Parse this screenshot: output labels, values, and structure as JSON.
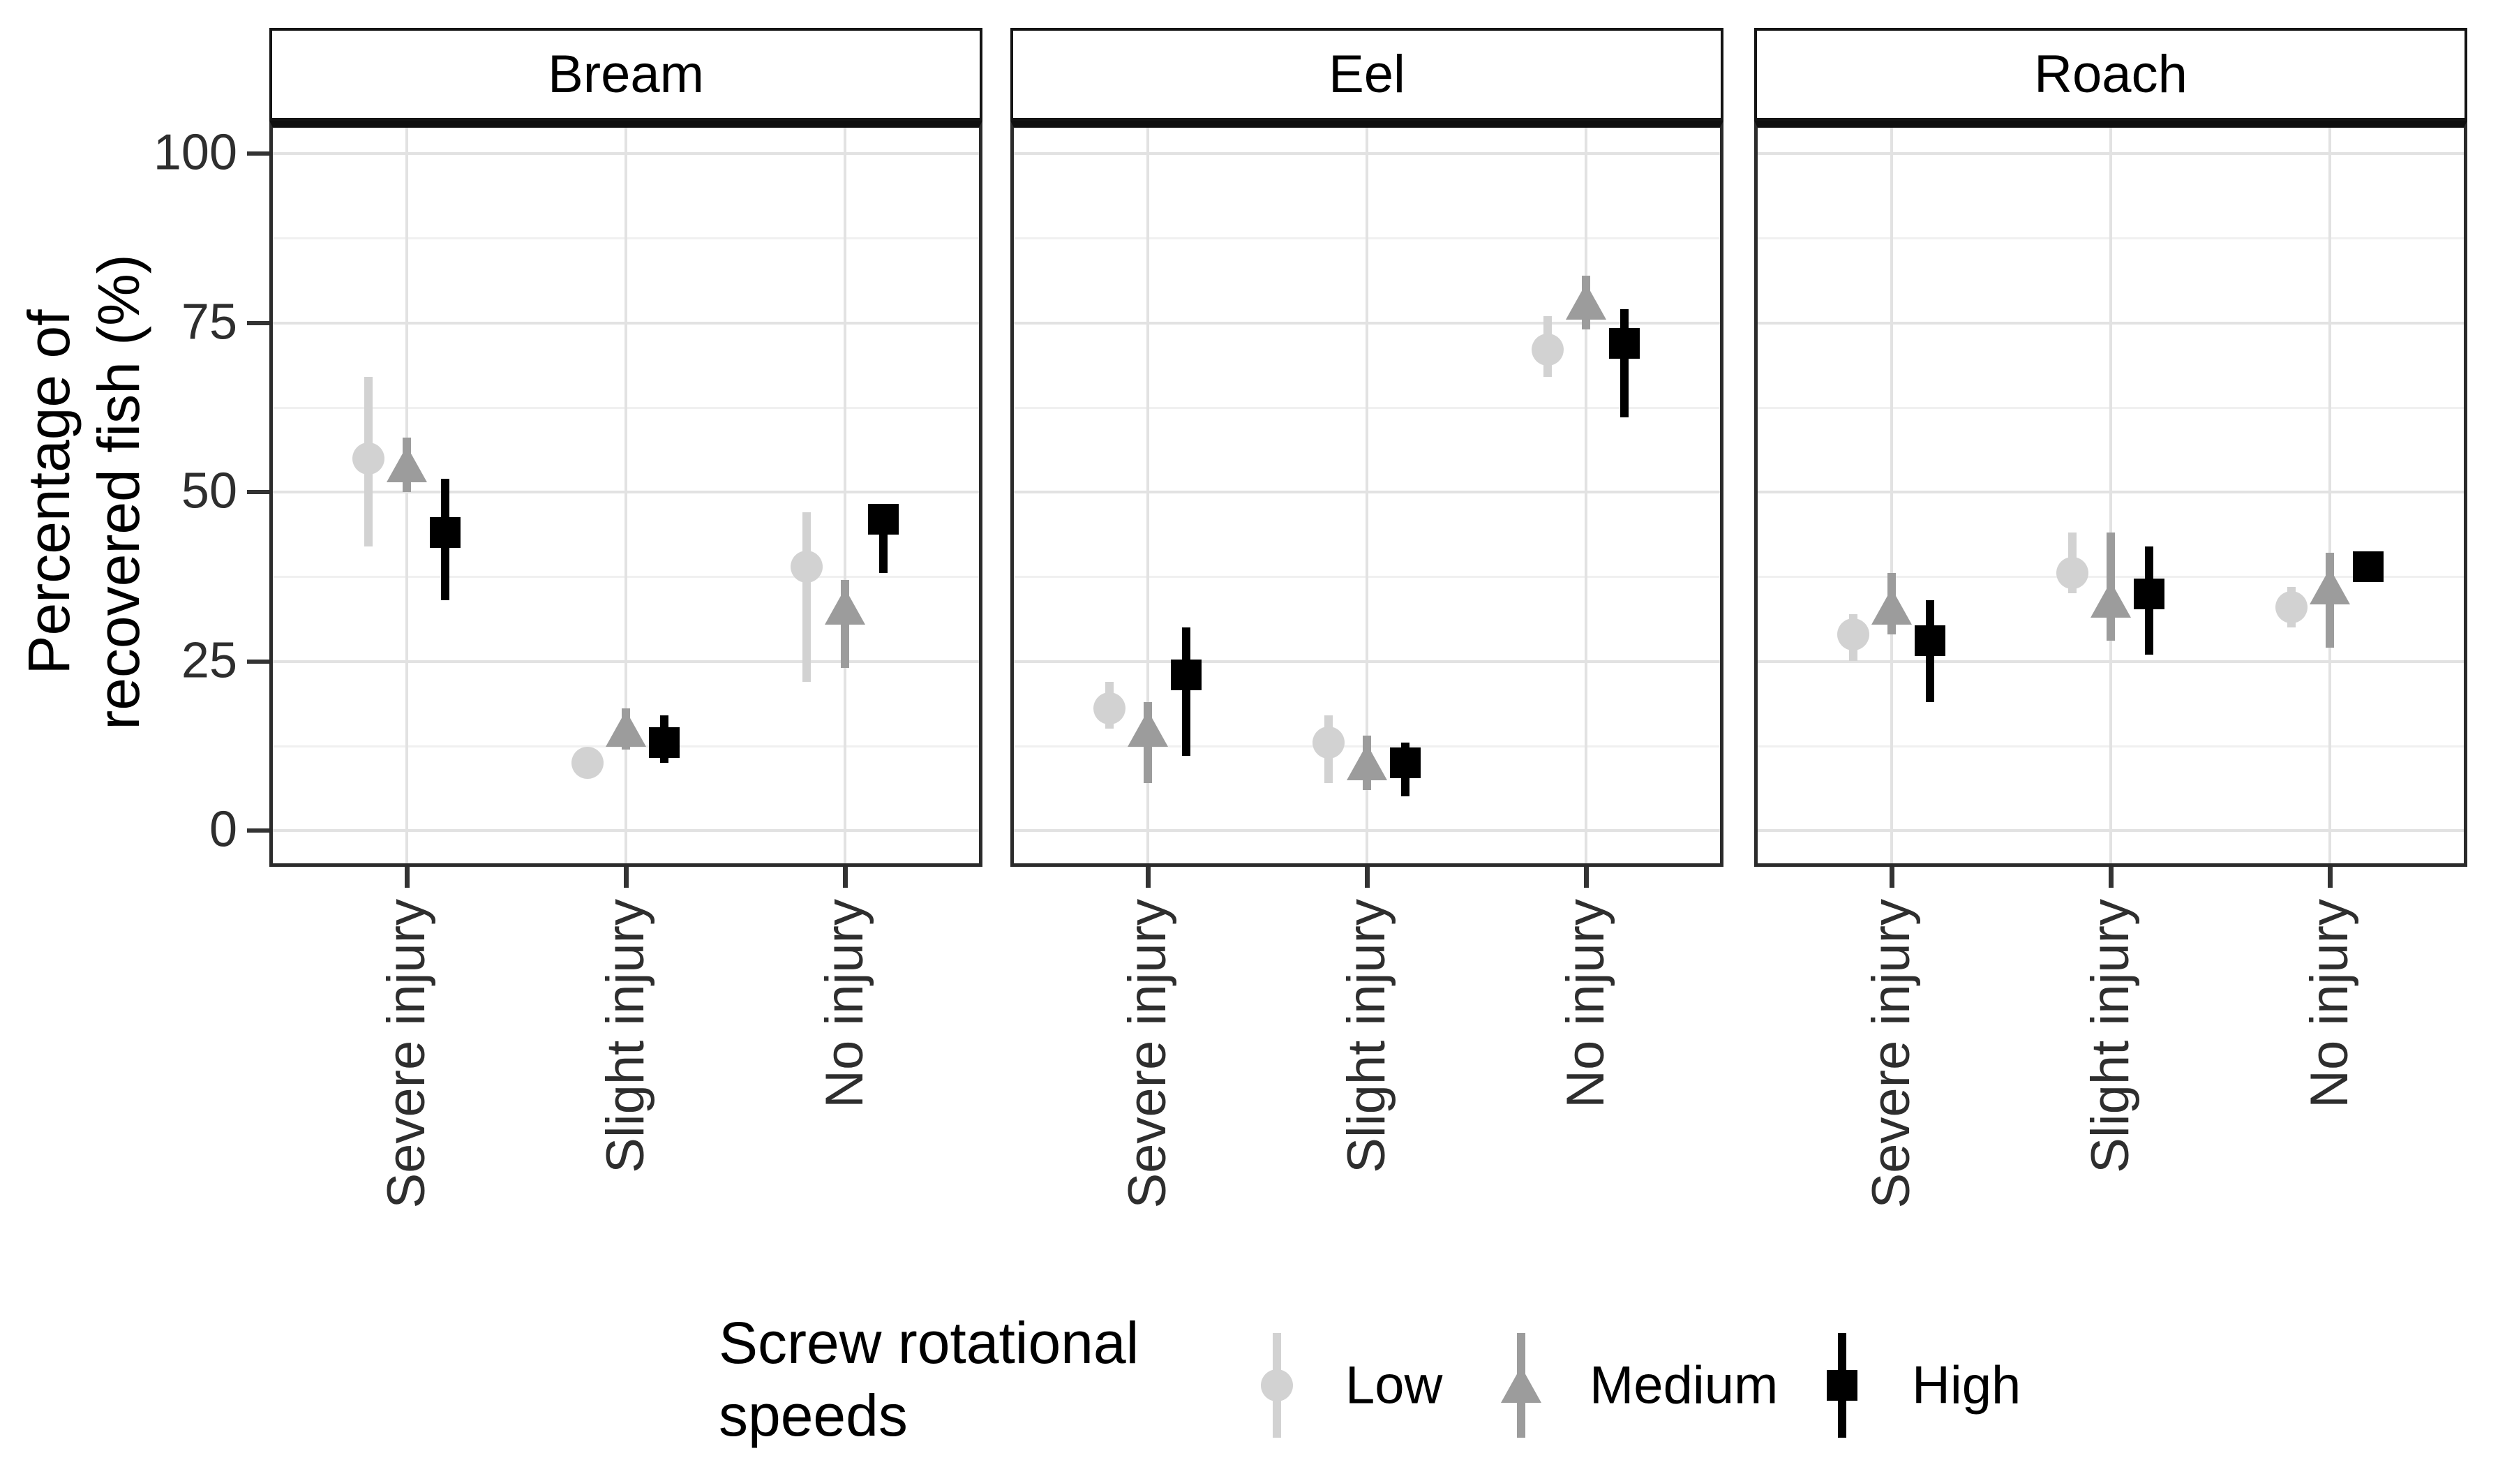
{
  "figure": {
    "y_axis": {
      "title_line1": "Percentage of",
      "title_line2": "recovered fish (%)",
      "tick_labels": [
        "100",
        "75",
        "50",
        "25",
        "0"
      ],
      "tick_values": [
        100,
        75,
        50,
        25,
        0
      ],
      "minor_values": [
        87.5,
        62.5,
        37.5,
        12.5
      ]
    },
    "x_categories": [
      "Severe injury",
      "Slight injury",
      "No injury"
    ],
    "facet_labels": [
      "Bream",
      "Eel",
      "Roach"
    ]
  },
  "legend": {
    "title_line1": "Screw rotational",
    "title_line2": "speeds",
    "items": [
      {
        "label": "Low",
        "shape": "circle",
        "color": "#d2d2d2"
      },
      {
        "label": "Medium",
        "shape": "triangle",
        "color": "#9c9c9c"
      },
      {
        "label": "High",
        "shape": "square",
        "color": "#000000"
      }
    ]
  },
  "colors": {
    "grid_major": "#e2e2e2",
    "grid_minor": "#f0f0f0",
    "panel_border": "#2b2b2b",
    "axis_text": "#2e2e2e"
  },
  "chart_data": {
    "type": "scatter",
    "title": "",
    "xlabel": "",
    "ylabel": "Percentage of recovered fish (%)",
    "ylim": [
      0,
      100
    ],
    "grid": true,
    "legend_position": "bottom",
    "categories": [
      "Severe injury",
      "Slight injury",
      "No injury"
    ],
    "facets": [
      {
        "name": "Bream",
        "series": [
          {
            "speed": "Low",
            "values": [
              {
                "category": "Severe injury",
                "value": 55,
                "lo": 42,
                "hi": 67
              },
              {
                "category": "Slight injury",
                "value": 10,
                "lo": 8,
                "hi": 12
              },
              {
                "category": "No injury",
                "value": 39,
                "lo": 22,
                "hi": 47
              }
            ]
          },
          {
            "speed": "Medium",
            "values": [
              {
                "category": "Severe injury",
                "value": 54,
                "lo": 50,
                "hi": 58
              },
              {
                "category": "Slight injury",
                "value": 15,
                "lo": 12,
                "hi": 18
              },
              {
                "category": "No injury",
                "value": 33,
                "lo": 24,
                "hi": 37
              }
            ]
          },
          {
            "speed": "High",
            "values": [
              {
                "category": "Severe injury",
                "value": 44,
                "lo": 34,
                "hi": 52
              },
              {
                "category": "Slight injury",
                "value": 13,
                "lo": 10,
                "hi": 17
              },
              {
                "category": "No injury",
                "value": 46,
                "lo": 38,
                "hi": 48
              }
            ]
          }
        ]
      },
      {
        "name": "Eel",
        "series": [
          {
            "speed": "Low",
            "values": [
              {
                "category": "Severe injury",
                "value": 18,
                "lo": 15,
                "hi": 22
              },
              {
                "category": "Slight injury",
                "value": 13,
                "lo": 7,
                "hi": 17
              },
              {
                "category": "No injury",
                "value": 71,
                "lo": 67,
                "hi": 76
              }
            ]
          },
          {
            "speed": "Medium",
            "values": [
              {
                "category": "Severe injury",
                "value": 15,
                "lo": 7,
                "hi": 19
              },
              {
                "category": "Slight injury",
                "value": 10,
                "lo": 6,
                "hi": 14
              },
              {
                "category": "No injury",
                "value": 78,
                "lo": 74,
                "hi": 82
              }
            ]
          },
          {
            "speed": "High",
            "values": [
              {
                "category": "Severe injury",
                "value": 23,
                "lo": 11,
                "hi": 30
              },
              {
                "category": "Slight injury",
                "value": 10,
                "lo": 5,
                "hi": 13
              },
              {
                "category": "No injury",
                "value": 72,
                "lo": 61,
                "hi": 77
              }
            ]
          }
        ]
      },
      {
        "name": "Roach",
        "series": [
          {
            "speed": "Low",
            "values": [
              {
                "category": "Severe injury",
                "value": 29,
                "lo": 25,
                "hi": 32
              },
              {
                "category": "Slight injury",
                "value": 38,
                "lo": 35,
                "hi": 44
              },
              {
                "category": "No injury",
                "value": 33,
                "lo": 30,
                "hi": 36
              }
            ]
          },
          {
            "speed": "Medium",
            "values": [
              {
                "category": "Severe injury",
                "value": 33,
                "lo": 29,
                "hi": 38
              },
              {
                "category": "Slight injury",
                "value": 34,
                "lo": 28,
                "hi": 44
              },
              {
                "category": "No injury",
                "value": 36,
                "lo": 27,
                "hi": 41
              }
            ]
          },
          {
            "speed": "High",
            "values": [
              {
                "category": "Severe injury",
                "value": 28,
                "lo": 19,
                "hi": 34
              },
              {
                "category": "Slight injury",
                "value": 35,
                "lo": 26,
                "hi": 42
              },
              {
                "category": "No injury",
                "value": 39,
                "lo": 39,
                "hi": 39
              }
            ]
          }
        ]
      }
    ]
  }
}
